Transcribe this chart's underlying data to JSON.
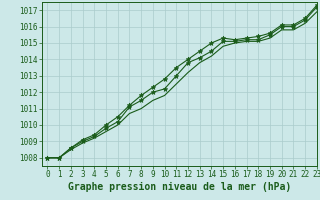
{
  "xlabel": "Graphe pression niveau de la mer (hPa)",
  "xlim": [
    -0.5,
    23
  ],
  "ylim": [
    1007.5,
    1017.5
  ],
  "yticks": [
    1008,
    1009,
    1010,
    1011,
    1012,
    1013,
    1014,
    1015,
    1016,
    1017
  ],
  "xticks": [
    0,
    1,
    2,
    3,
    4,
    5,
    6,
    7,
    8,
    9,
    10,
    11,
    12,
    13,
    14,
    15,
    16,
    17,
    18,
    19,
    20,
    21,
    22,
    23
  ],
  "bg_color": "#cce8e8",
  "grid_color": "#aacccc",
  "line_color": "#1a5c1a",
  "series1": [
    1008.0,
    1008.0,
    1008.6,
    1009.0,
    1009.3,
    1009.8,
    1010.2,
    1011.1,
    1011.5,
    1012.0,
    1012.2,
    1013.0,
    1013.8,
    1014.1,
    1014.5,
    1015.1,
    1015.1,
    1015.2,
    1015.2,
    1015.5,
    1016.0,
    1016.0,
    1016.4,
    1017.2
  ],
  "series2": [
    1008.0,
    1008.0,
    1008.6,
    1009.1,
    1009.4,
    1010.0,
    1010.5,
    1011.2,
    1011.8,
    1012.3,
    1012.8,
    1013.5,
    1014.0,
    1014.5,
    1015.0,
    1015.3,
    1015.2,
    1015.3,
    1015.4,
    1015.6,
    1016.1,
    1016.1,
    1016.5,
    1017.3
  ],
  "series3": [
    1008.0,
    1008.0,
    1008.5,
    1008.9,
    1009.2,
    1009.6,
    1010.0,
    1010.7,
    1011.0,
    1011.5,
    1011.8,
    1012.5,
    1013.2,
    1013.8,
    1014.2,
    1014.8,
    1015.0,
    1015.1,
    1015.1,
    1015.3,
    1015.8,
    1015.8,
    1016.2,
    1016.9
  ],
  "markersize": 2.5,
  "linewidth": 0.8,
  "title_fontsize": 7,
  "tick_fontsize": 5.5
}
